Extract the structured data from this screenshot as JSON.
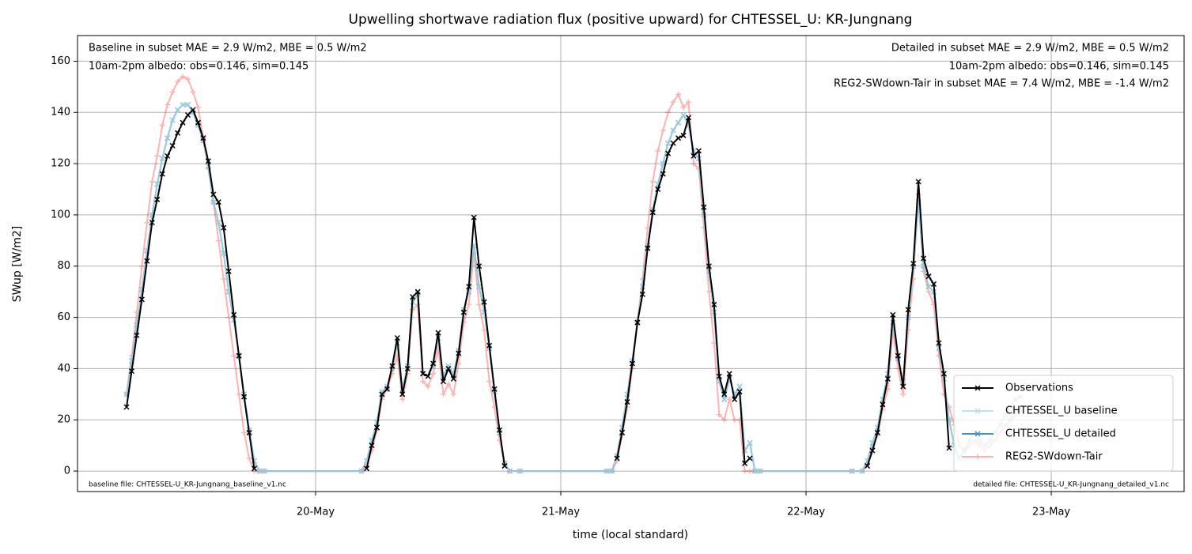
{
  "chart_data": {
    "type": "line",
    "title": "Upwelling shortwave radiation flux (positive upward) for CHTESSEL_U: KR-Jungnang",
    "xlabel": "time (local standard)",
    "ylabel": "SWup [W/m2]",
    "xlim": [
      0.7,
      109
    ],
    "ylim": [
      -8,
      170
    ],
    "xticks": [
      {
        "value": 24,
        "label": "20-May"
      },
      {
        "value": 48,
        "label": "21-May"
      },
      {
        "value": 72,
        "label": "22-May"
      },
      {
        "value": 96,
        "label": "23-May"
      }
    ],
    "yticks": [
      0,
      20,
      40,
      60,
      80,
      100,
      120,
      140,
      160
    ],
    "grid": true,
    "legend": "lower right",
    "annotations": [
      {
        "text": "Baseline in subset MAE = 2.9 W/m2, MBE = 0.5 W/m2",
        "color": "#add8e6"
      },
      {
        "text": "10am-2pm albedo: obs=0.146, sim=0.145",
        "color": "#000000"
      },
      {
        "text": "Detailed in subset MAE = 2.9 W/m2, MBE = 0.5 W/m2",
        "color": "#1f77b4"
      },
      {
        "text": "10am-2pm albedo: obs=0.146, sim=0.145",
        "color": "#000000"
      },
      {
        "text": "REG2-SWdown-Tair in subset MAE = 7.4 W/m2, MBE = -1.4 W/m2",
        "color": "#ff0000"
      },
      {
        "text": "baseline file: CHTESSEL-U_KR-Jungnang_baseline_v1.nc",
        "color": "#000000"
      },
      {
        "text": "detailed file: CHTESSEL-U_KR-Jungnang_detailed_v1.nc",
        "color": "#000000"
      }
    ],
    "x": [
      5.5,
      6,
      6.5,
      7,
      7.5,
      8,
      8.5,
      9,
      9.5,
      10,
      10.5,
      11,
      11.5,
      12,
      12.5,
      13,
      13.5,
      14,
      14.5,
      15,
      15.5,
      16,
      16.5,
      17,
      17.5,
      18,
      18.5,
      19,
      28.5,
      29,
      29.5,
      30,
      30.5,
      31,
      31.5,
      32,
      32.5,
      33,
      33.5,
      34,
      34.5,
      35,
      35.5,
      36,
      36.5,
      37,
      37.5,
      38,
      38.5,
      39,
      39.5,
      40,
      40.5,
      41,
      41.5,
      42,
      42.5,
      43,
      44,
      52.5,
      53,
      53.5,
      54,
      54.5,
      55,
      55.5,
      56,
      56.5,
      57,
      57.5,
      58,
      58.5,
      59,
      59.5,
      60,
      60.5,
      61,
      61.5,
      62,
      62.5,
      63,
      63.5,
      64,
      64.5,
      65,
      65.5,
      66,
      66.5,
      67,
      67.5,
      76.5,
      77.5,
      78,
      78.5,
      79,
      79.5,
      80,
      80.5,
      81,
      81.5,
      82,
      82.5,
      83,
      83.5,
      84,
      84.5,
      85,
      85.5,
      86,
      86.5,
      87,
      87.5,
      88,
      88.5,
      89,
      89.5,
      90,
      90.5,
      91,
      91.5,
      92,
      92.5,
      93
    ],
    "series": [
      {
        "name": "Observations",
        "color": "#000000",
        "marker": "x",
        "opacity": 1,
        "width": 2,
        "values": [
          25,
          39,
          53,
          67,
          82,
          97,
          106,
          116,
          123,
          127,
          132,
          136,
          139,
          141,
          136,
          130,
          121,
          108,
          105,
          95,
          78,
          61,
          45,
          29,
          15,
          1,
          null,
          null,
          null,
          1,
          10,
          17,
          30,
          32,
          41,
          52,
          30,
          40,
          68,
          70,
          38,
          37,
          42,
          54,
          35,
          40,
          36,
          46,
          62,
          72,
          99,
          80,
          66,
          49,
          32,
          16,
          2,
          null,
          null,
          null,
          null,
          5,
          15,
          27,
          42,
          58,
          69,
          87,
          101,
          110,
          116,
          124,
          128,
          130,
          131,
          138,
          123,
          125,
          103,
          80,
          65,
          37,
          30,
          38,
          28,
          31,
          3,
          5,
          null,
          null,
          null,
          null,
          2,
          8,
          15,
          26,
          36,
          61,
          45,
          33,
          63,
          81,
          113,
          83,
          76,
          73,
          50,
          38,
          9,
          null,
          null,
          null,
          null,
          null,
          null,
          null,
          null,
          null,
          null,
          null,
          null,
          null,
          null
        ]
      },
      {
        "name": "CHTESSEL_U baseline",
        "color": "#add8e6",
        "marker": "x",
        "opacity": 0.8,
        "width": 2,
        "values": [
          30,
          43,
          57,
          71,
          86,
          100,
          112,
          122,
          130,
          137,
          141,
          143,
          143,
          140,
          135,
          129,
          119,
          105,
          97,
          85,
          70,
          59,
          45,
          30,
          16,
          4,
          0,
          0,
          0,
          4,
          12,
          19,
          31,
          33,
          40,
          50,
          32,
          41,
          66,
          69,
          38,
          37,
          41,
          52,
          37,
          41,
          38,
          47,
          63,
          70,
          88,
          72,
          62,
          48,
          31,
          15,
          3,
          0,
          0,
          0,
          0,
          6,
          17,
          30,
          43,
          58,
          72,
          88,
          102,
          112,
          120,
          128,
          133,
          136,
          139,
          135,
          125,
          122,
          100,
          78,
          62,
          35,
          28,
          36,
          30,
          33,
          8,
          11,
          0,
          0,
          0,
          0,
          4,
          11,
          17,
          28,
          38,
          58,
          44,
          35,
          60,
          80,
          105,
          80,
          72,
          70,
          48,
          36,
          20,
          10,
          5,
          8,
          12,
          15,
          12,
          10,
          12,
          15,
          18,
          22,
          25,
          28,
          29
        ]
      },
      {
        "name": "CHTESSEL_U detailed",
        "color": "#1f77b4",
        "marker": "x",
        "opacity": 0.8,
        "width": 2,
        "values": [
          30,
          43,
          57,
          71,
          86,
          100,
          112,
          122,
          130,
          137,
          141,
          143,
          143,
          140,
          135,
          129,
          119,
          105,
          97,
          85,
          70,
          59,
          45,
          30,
          16,
          4,
          0,
          0,
          0,
          4,
          12,
          19,
          31,
          33,
          40,
          50,
          32,
          41,
          66,
          69,
          38,
          37,
          41,
          52,
          37,
          41,
          38,
          47,
          63,
          70,
          88,
          72,
          62,
          48,
          31,
          15,
          3,
          0,
          0,
          0,
          0,
          6,
          17,
          30,
          43,
          58,
          72,
          88,
          102,
          112,
          120,
          128,
          133,
          136,
          139,
          135,
          125,
          122,
          100,
          78,
          62,
          35,
          28,
          36,
          30,
          33,
          8,
          11,
          0,
          0,
          0,
          0,
          4,
          11,
          17,
          28,
          38,
          58,
          44,
          35,
          60,
          80,
          105,
          80,
          72,
          70,
          48,
          36,
          20,
          10,
          5,
          8,
          12,
          15,
          12,
          10,
          12,
          15,
          18,
          22,
          25,
          28,
          29
        ]
      },
      {
        "name": "REG2-SWdown-Tair",
        "color": "#ff0000",
        "marker": "+",
        "opacity": 0.3,
        "width": 2,
        "values": [
          30,
          45,
          62,
          80,
          97,
          113,
          123,
          135,
          143,
          148,
          152,
          154,
          153,
          148,
          142,
          130,
          118,
          105,
          90,
          75,
          60,
          45,
          30,
          15,
          5,
          0,
          0,
          0,
          0,
          2,
          8,
          16,
          28,
          32,
          38,
          45,
          28,
          38,
          63,
          65,
          35,
          33,
          38,
          48,
          30,
          34,
          30,
          42,
          58,
          65,
          85,
          65,
          55,
          35,
          25,
          12,
          3,
          0,
          0,
          0,
          0,
          4,
          14,
          25,
          40,
          58,
          75,
          95,
          113,
          125,
          133,
          140,
          144,
          147,
          142,
          144,
          120,
          118,
          95,
          70,
          50,
          22,
          20,
          28,
          20,
          20,
          0,
          0,
          0,
          0,
          0,
          0,
          3,
          9,
          14,
          24,
          32,
          55,
          40,
          30,
          55,
          75,
          108,
          78,
          70,
          65,
          45,
          30,
          25,
          18,
          10,
          8,
          10,
          12,
          10,
          8,
          10,
          12,
          15,
          18,
          20,
          22,
          25
        ]
      }
    ]
  }
}
